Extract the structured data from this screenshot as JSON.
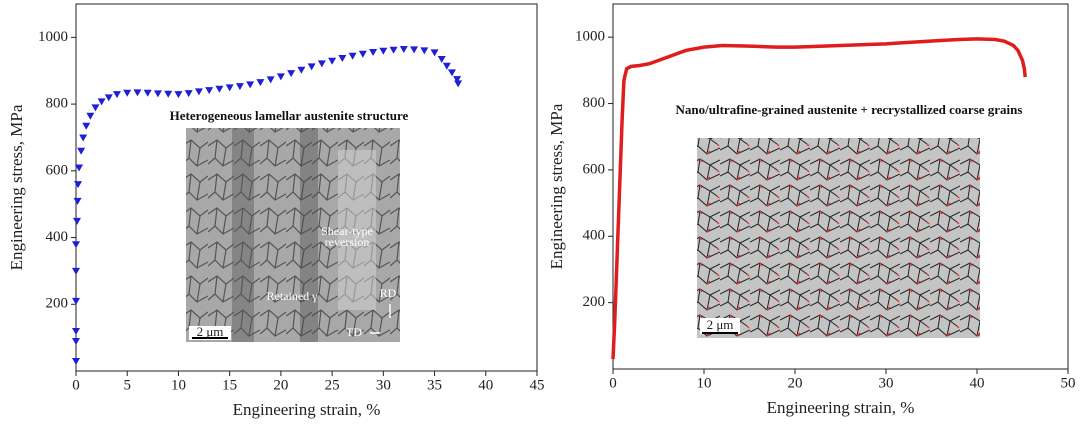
{
  "chart_data": [
    {
      "type": "scatter",
      "xlabel": "Engineering strain, %",
      "ylabel": "Engineering stress, MPa",
      "xlim": [
        0,
        45
      ],
      "xticks": [
        0,
        5,
        10,
        15,
        20,
        25,
        30,
        35,
        40,
        45
      ],
      "ylim": [
        0,
        1100
      ],
      "yticks": [
        200,
        400,
        600,
        800,
        1000
      ],
      "color": "#1f1fd6",
      "marker": "triangle-down",
      "x": [
        0,
        0,
        0,
        0,
        0,
        0,
        0.1,
        0.15,
        0.2,
        0.3,
        0.5,
        0.7,
        1,
        1.4,
        1.9,
        2.5,
        3.2,
        4,
        5,
        6,
        7,
        8,
        9,
        10,
        11,
        12,
        13,
        14,
        15,
        16,
        17,
        18,
        19,
        20,
        21,
        22,
        23,
        24,
        25,
        26,
        27,
        28,
        29,
        30,
        31,
        32,
        33,
        34,
        35,
        35.7,
        36.2,
        36.7,
        37.2,
        37.3
      ],
      "values": [
        30,
        90,
        120,
        210,
        300,
        380,
        450,
        510,
        560,
        610,
        660,
        700,
        735,
        765,
        790,
        808,
        820,
        830,
        834,
        835,
        834,
        832,
        831,
        830,
        833,
        838,
        842,
        846,
        850,
        854,
        859,
        866,
        874,
        883,
        893,
        903,
        913,
        922,
        930,
        938,
        945,
        951,
        956,
        960,
        963,
        965,
        964,
        961,
        955,
        935,
        915,
        895,
        875,
        862
      ],
      "annotations": [
        "Heterogeneous lamellar austenite structure",
        "Shear-type",
        "reversion",
        "Retained γ",
        "RD",
        "TD",
        "2 μm"
      ]
    },
    {
      "type": "line",
      "xlabel": "Engineering strain, %",
      "ylabel": "Engineering stress, MPa",
      "xlim": [
        0,
        50
      ],
      "xticks": [
        0,
        10,
        20,
        30,
        40,
        50
      ],
      "ylim": [
        0,
        1100
      ],
      "yticks": [
        200,
        400,
        600,
        800,
        1000
      ],
      "color": "#e01c1c",
      "x": [
        0,
        0.2,
        0.4,
        0.6,
        0.8,
        1.0,
        1.2,
        1.5,
        2,
        3,
        4,
        6,
        8,
        10,
        12,
        15,
        18,
        20,
        22,
        25,
        28,
        30,
        33,
        36,
        38,
        40,
        42,
        43,
        44,
        44.5,
        45,
        45.2,
        45.3
      ],
      "values": [
        30,
        150,
        300,
        450,
        600,
        750,
        870,
        905,
        912,
        915,
        920,
        940,
        960,
        970,
        975,
        973,
        970,
        970,
        972,
        975,
        978,
        980,
        985,
        990,
        993,
        995,
        993,
        988,
        975,
        960,
        930,
        905,
        880
      ],
      "annotations": [
        "Nano/ultrafine-grained austenite + recrystallized coarse grains",
        "2 μm"
      ]
    }
  ]
}
